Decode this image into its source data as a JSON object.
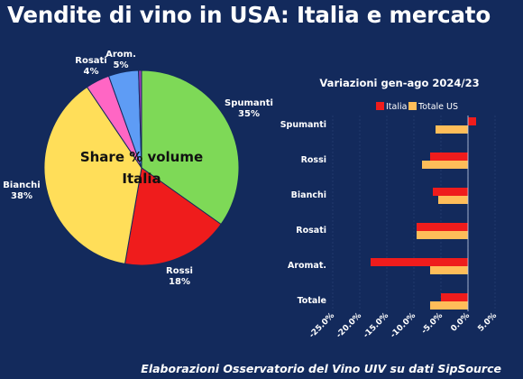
{
  "header": {
    "title": "Vendite di vino in USA: Italia e mercato"
  },
  "footer": {
    "source": "Elaborazioni Osservatorio del Vino UIV su dati SipSource"
  },
  "chart_data": [
    {
      "type": "pie",
      "title": "Share % volume Italia",
      "title_lines": [
        "Share % volume",
        "Italia"
      ],
      "slices": [
        {
          "label": "Spumanti",
          "value": 35,
          "value_label": "35%",
          "color": "#7ed957"
        },
        {
          "label": "Rossi",
          "value": 18,
          "value_label": "18%",
          "color": "#ef1c1c"
        },
        {
          "label": "Bianchi",
          "value": 38,
          "value_label": "38%",
          "color": "#ffde59"
        },
        {
          "label": "Rosati",
          "value": 4,
          "value_label": "4%",
          "color": "#ff66c4"
        },
        {
          "label": "Arom.",
          "value": 5,
          "value_label": "5%",
          "color": "#5e9cf5"
        }
      ],
      "other_slice": {
        "value": 0.5,
        "color": "#9b3fb5"
      }
    },
    {
      "type": "bar",
      "orientation": "horizontal",
      "title": "Variazioni gen-ago 2024/23",
      "categories": [
        "Spumanti",
        "Rossi",
        "Bianchi",
        "Rosati",
        "Aromat.",
        "Totale"
      ],
      "series": [
        {
          "name": "Italia",
          "color": "#ef1c1c",
          "values": [
            1.5,
            -7.0,
            -6.5,
            -9.5,
            -18.0,
            -5.0
          ]
        },
        {
          "name": "Totale US",
          "color": "#ffbd59",
          "values": [
            -6.0,
            -8.5,
            -5.5,
            -9.5,
            -7.0,
            -7.0
          ]
        }
      ],
      "xlim": [
        -25,
        5
      ],
      "xticks": [
        -25,
        -20,
        -15,
        -10,
        -5,
        0,
        5
      ],
      "xtick_labels": [
        "-25.0%",
        "-20.0%",
        "-15.0%",
        "-10.0%",
        "-5.0%",
        "0.0%",
        "5.0%"
      ],
      "legend_position": "top"
    }
  ]
}
